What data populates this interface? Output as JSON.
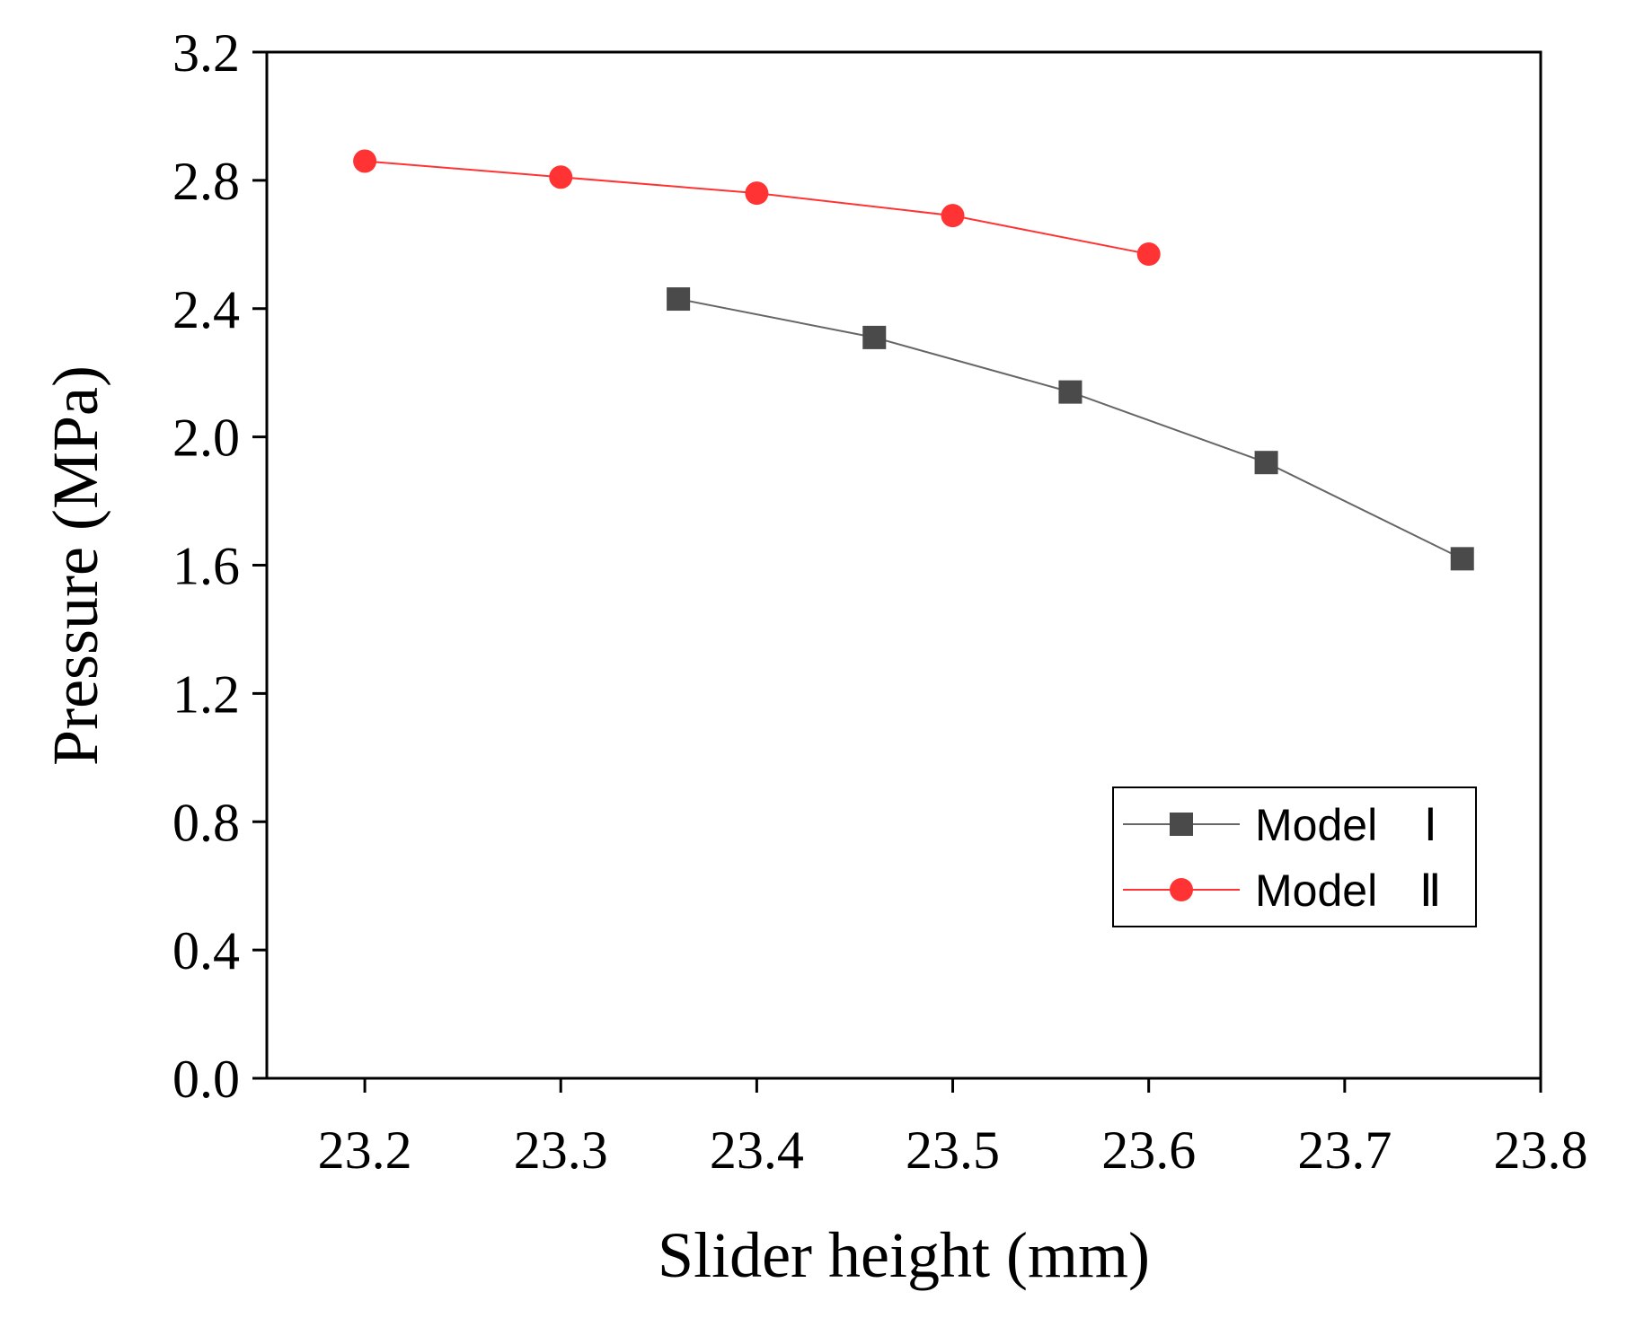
{
  "chart_data": {
    "type": "line",
    "title": "",
    "xlabel": "Slider height (mm)",
    "ylabel": "Pressure (MPa)",
    "xlim": [
      23.15,
      23.8
    ],
    "ylim": [
      0.0,
      3.2
    ],
    "x_ticks": [
      "23.2",
      "23.3",
      "23.4",
      "23.5",
      "23.6",
      "23.7",
      "23.8"
    ],
    "x_tick_values": [
      23.2,
      23.3,
      23.4,
      23.5,
      23.6,
      23.7,
      23.8
    ],
    "y_ticks": [
      "0.0",
      "0.4",
      "0.8",
      "1.2",
      "1.6",
      "2.0",
      "2.4",
      "2.8",
      "3.2"
    ],
    "y_tick_values": [
      0.0,
      0.4,
      0.8,
      1.2,
      1.6,
      2.0,
      2.4,
      2.8,
      3.2
    ],
    "grid": false,
    "legend_position": "bottom-right",
    "series": [
      {
        "name": "Model",
        "suffix": "Ⅰ",
        "marker": "square",
        "color": "#4a4a4a",
        "line_color": "#666666",
        "x": [
          23.36,
          23.46,
          23.56,
          23.66,
          23.76
        ],
        "y": [
          2.43,
          2.31,
          2.14,
          1.92,
          1.62
        ]
      },
      {
        "name": "Model",
        "suffix": "Ⅱ",
        "marker": "circle",
        "color": "#ff3333",
        "line_color": "#ff3333",
        "x": [
          23.2,
          23.3,
          23.4,
          23.5,
          23.6
        ],
        "y": [
          2.86,
          2.81,
          2.76,
          2.69,
          2.57
        ]
      }
    ]
  }
}
